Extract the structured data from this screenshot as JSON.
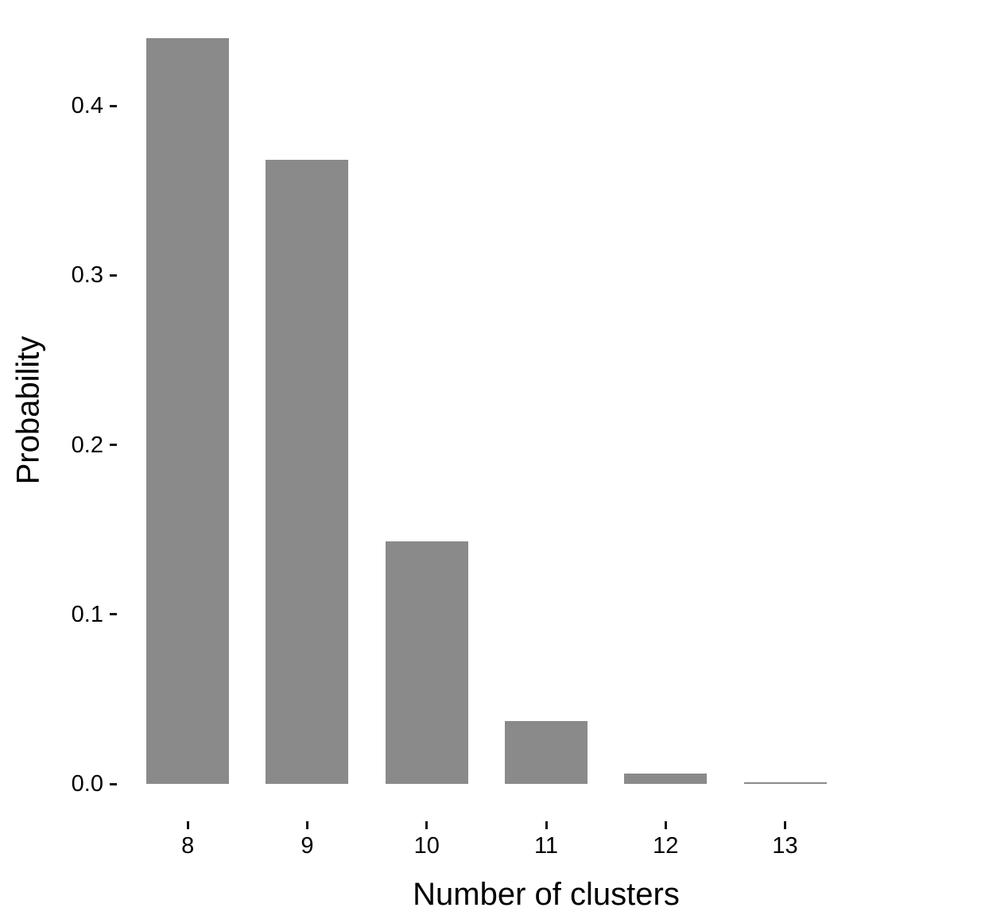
{
  "chart_data": {
    "type": "bar",
    "title": "",
    "xlabel": "Number of clusters",
    "ylabel": "Probability",
    "categories": [
      "8",
      "9",
      "10",
      "11",
      "12",
      "13"
    ],
    "values": [
      0.44,
      0.368,
      0.143,
      0.037,
      0.006,
      0.001
    ],
    "yticks": [
      0.0,
      0.1,
      0.2,
      0.3,
      0.4
    ],
    "ytick_labels": [
      "0.0",
      "0.1",
      "0.2",
      "0.3",
      "0.4"
    ],
    "ylim": [
      -0.022,
      0.462
    ],
    "grid": false,
    "legend": false,
    "bar_color": "#8a8a8a",
    "tick_color": "#121212",
    "text_color": "#000000",
    "background_color": "#ffffff"
  }
}
